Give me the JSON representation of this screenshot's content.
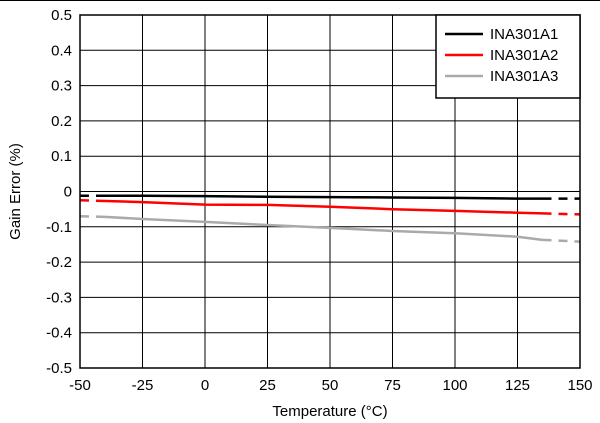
{
  "chart_data": {
    "type": "line",
    "title": "",
    "xlabel": "Temperature (°C)",
    "ylabel": "Gain Error (%)",
    "xlim": [
      -50,
      150
    ],
    "ylim": [
      -0.5,
      0.5
    ],
    "xticks": [
      -50,
      -25,
      0,
      25,
      50,
      75,
      100,
      125,
      150
    ],
    "yticks": [
      0.5,
      0.4,
      0.3,
      0.2,
      0.1,
      0,
      -0.1,
      -0.2,
      -0.3,
      -0.4,
      -0.5
    ],
    "xtick_labels": [
      "-50",
      "-25",
      "0",
      "25",
      "50",
      "75",
      "100",
      "125",
      "150"
    ],
    "ytick_labels": [
      "0.5",
      "0.4",
      "0.3",
      "0.2",
      "0.1",
      "0",
      "-0.1",
      "-0.2",
      "-0.3",
      "-0.4",
      "-0.5"
    ],
    "grid": true,
    "legend_position": "top-right",
    "series": [
      {
        "name": "INA301A1",
        "color": "#000000",
        "solid": {
          "x": [
            -40,
            -25,
            0,
            25,
            50,
            75,
            100,
            125,
            135
          ],
          "y": [
            -0.012,
            -0.012,
            -0.013,
            -0.015,
            -0.016,
            -0.017,
            -0.018,
            -0.02,
            -0.02
          ]
        },
        "dashed_left": {
          "x": [
            -50,
            -40
          ],
          "y": [
            -0.012,
            -0.012
          ]
        },
        "dashed_right": {
          "x": [
            135,
            150
          ],
          "y": [
            -0.02,
            -0.02
          ]
        }
      },
      {
        "name": "INA301A2",
        "color": "#ff0000",
        "solid": {
          "x": [
            -40,
            -25,
            0,
            25,
            50,
            75,
            100,
            125,
            135
          ],
          "y": [
            -0.027,
            -0.03,
            -0.037,
            -0.038,
            -0.043,
            -0.05,
            -0.055,
            -0.06,
            -0.062
          ]
        },
        "dashed_left": {
          "x": [
            -50,
            -40
          ],
          "y": [
            -0.025,
            -0.027
          ]
        },
        "dashed_right": {
          "x": [
            135,
            150
          ],
          "y": [
            -0.062,
            -0.065
          ]
        }
      },
      {
        "name": "INA301A3",
        "color": "#aaaaaa",
        "solid": {
          "x": [
            -40,
            -25,
            0,
            25,
            50,
            75,
            100,
            125,
            135
          ],
          "y": [
            -0.072,
            -0.078,
            -0.086,
            -0.095,
            -0.103,
            -0.112,
            -0.118,
            -0.128,
            -0.137
          ]
        },
        "dashed_left": {
          "x": [
            -50,
            -40
          ],
          "y": [
            -0.07,
            -0.072
          ]
        },
        "dashed_right": {
          "x": [
            135,
            150
          ],
          "y": [
            -0.137,
            -0.142
          ]
        }
      }
    ]
  }
}
